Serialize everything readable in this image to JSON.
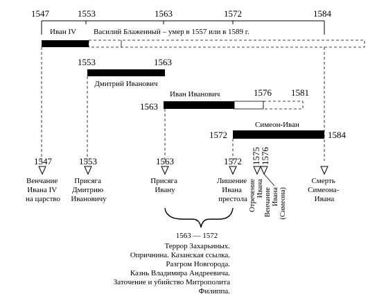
{
  "top_years": [
    "1547",
    "1553",
    "1563",
    "1572",
    "1584"
  ],
  "rows": {
    "ivan_iv": {
      "name": "Иван IV",
      "note": "Василий Блаженный – умер в 1557 или в 1589 г."
    },
    "dmitry": {
      "start": "1553",
      "end": "1563",
      "name": "Дмитрий Иванович"
    },
    "ivan_ivanovich": {
      "start": "1563",
      "mid": "1576",
      "end": "1581",
      "name": "Иван Иванович"
    },
    "simeon": {
      "start": "1572",
      "end": "1584",
      "name": "Симеон-Иван"
    }
  },
  "events": [
    {
      "year": "1547",
      "lines": [
        "Венчание",
        "Ивана IV",
        "на царство"
      ]
    },
    {
      "year": "1553",
      "lines": [
        "Присяга",
        "Дмитрию",
        "Ивановичу"
      ]
    },
    {
      "year": "1563",
      "lines": [
        "Присяга",
        "Ивану"
      ]
    },
    {
      "year": "1572",
      "lines": [
        "Лишение",
        "Ивана",
        "престола"
      ]
    },
    {
      "year": "1575",
      "lines": [
        "Отречение",
        "Ивана"
      ]
    },
    {
      "year": "1576",
      "lines": [
        "Венчание",
        "Ивана",
        "(Симеона)"
      ]
    },
    {
      "year": "",
      "lines": [
        "Смерть",
        "Симеона-",
        "Ивана"
      ]
    }
  ],
  "period": {
    "range": "1563 — 1572",
    "lines": [
      "Террор Захарьиных.",
      "Опричнина. Казанская ссылка.",
      "Разгром Новгорода.",
      "Казнь Владимира Андреевича.",
      "Заточение и убийство Митрополита",
      "Филиппа."
    ]
  }
}
